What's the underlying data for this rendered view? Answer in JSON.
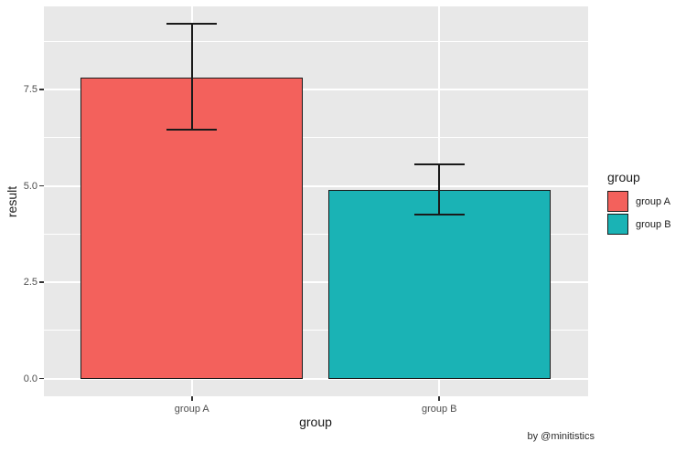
{
  "chart_data": {
    "type": "bar",
    "xlabel": "group",
    "ylabel": "result",
    "categories": [
      "group A",
      "group B"
    ],
    "values": [
      7.8,
      4.9
    ],
    "error_bars": {
      "lower": [
        6.45,
        4.25
      ],
      "upper": [
        9.2,
        5.55
      ]
    },
    "y_tick_labels": [
      "0.0",
      "2.5",
      "5.0",
      "7.5"
    ],
    "y_minor_ticks": [
      1.25,
      3.75,
      6.25,
      8.75
    ],
    "ylim": [
      -0.46,
      9.66
    ],
    "grid": true,
    "bar_width_fraction": 0.9,
    "legend": {
      "title": "group",
      "position": "right",
      "entries": [
        {
          "label": "group A",
          "color": "#F3615C"
        },
        {
          "label": "group B",
          "color": "#1AB3B5"
        }
      ]
    },
    "caption": "by @minitistics",
    "colors": {
      "panel_background": "#E8E8E8",
      "grid_line": "#FFFFFF",
      "bar_outline": "#1A1A1A",
      "error_bar": "#1A1A1A",
      "tick_mark": "#333333",
      "axis_text": "#4D4D4D",
      "title_text": "#1A1A1A"
    }
  }
}
